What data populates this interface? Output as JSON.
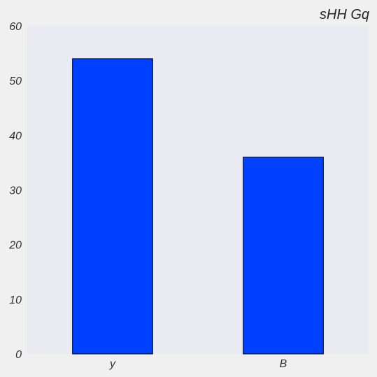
{
  "chart_data": {
    "type": "bar",
    "title": "sHH Gq",
    "xlabel": "",
    "ylabel": "",
    "categories": [
      "y",
      "B"
    ],
    "values": [
      54,
      36
    ],
    "ylim": [
      0,
      60
    ],
    "yticks": [
      "0",
      "10",
      "20",
      "30",
      "40",
      "50",
      "60"
    ],
    "grid": false,
    "legend": "none",
    "colors": {
      "bar": "#0041ff",
      "bar_edge": "#000000",
      "plot_background": "#eaeaf2",
      "figure_background": "#f0f0f0"
    }
  }
}
